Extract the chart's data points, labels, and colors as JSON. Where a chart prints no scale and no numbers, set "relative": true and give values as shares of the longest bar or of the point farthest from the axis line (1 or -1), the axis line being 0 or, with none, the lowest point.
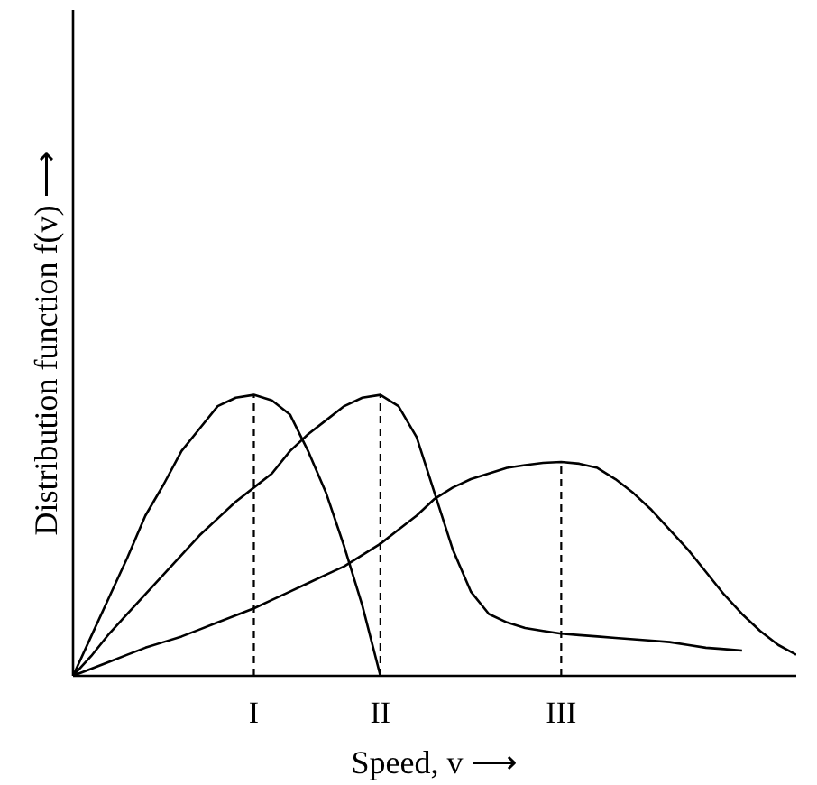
{
  "chart_data": {
    "type": "line",
    "relative": true,
    "xlabel": "Speed, v ⟶",
    "ylabel": "Distribution function f(v) ⟶",
    "categories": [
      null,
      null,
      null,
      null,
      null,
      null,
      null,
      null,
      null,
      null,
      "I",
      null,
      null,
      null,
      null,
      null,
      null,
      "II",
      null,
      null,
      null,
      null,
      null,
      null,
      null,
      null,
      null,
      "III",
      null,
      null,
      null,
      null,
      null,
      null,
      null,
      null,
      null,
      null,
      null,
      null,
      null
    ],
    "grid": false,
    "marker": "none",
    "series": [
      {
        "color": "#000000",
        "values": [
          0,
          0.14,
          0.28,
          0.42,
          0.57,
          0.68,
          0.8,
          0.88,
          0.96,
          0.99,
          1,
          0.98,
          0.93,
          0.8,
          0.65,
          0.46,
          0.25,
          0,
          null,
          null,
          null,
          null,
          null,
          null,
          null,
          null,
          null,
          null,
          null,
          null,
          null,
          null,
          null,
          null,
          null,
          null,
          null,
          null,
          null,
          null,
          null
        ]
      },
      {
        "color": "#000000",
        "values": [
          0,
          0.07,
          0.15,
          0.22,
          0.29,
          0.36,
          0.43,
          0.5,
          0.56,
          0.62,
          0.67,
          0.72,
          0.8,
          0.86,
          0.91,
          0.96,
          0.99,
          1,
          0.96,
          0.85,
          0.65,
          0.45,
          0.3,
          0.22,
          0.19,
          0.17,
          0.16,
          0.15,
          0.145,
          0.14,
          0.135,
          0.13,
          0.125,
          0.12,
          0.11,
          0.1,
          0.095,
          0.09,
          null,
          null,
          null
        ]
      },
      {
        "color": "#000000",
        "values": [
          0,
          0.025,
          0.05,
          0.075,
          0.1,
          0.12,
          0.14,
          0.165,
          0.19,
          0.215,
          0.24,
          0.27,
          0.3,
          0.33,
          0.36,
          0.39,
          0.43,
          0.47,
          0.52,
          0.57,
          0.63,
          0.67,
          0.7,
          0.72,
          0.74,
          0.75,
          0.758,
          0.761,
          0.755,
          0.74,
          0.7,
          0.65,
          0.59,
          0.52,
          0.45,
          0.37,
          0.29,
          0.22,
          0.16,
          0.11,
          0.075
        ]
      }
    ],
    "ref_lines": [
      {
        "axis": "x",
        "value": "I",
        "color": "#000000",
        "line_style": "dashed"
      },
      {
        "axis": "x",
        "value": "II",
        "color": "#000000",
        "line_style": "dashed"
      },
      {
        "axis": "x",
        "value": "III",
        "color": "#000000",
        "line_style": "dashed"
      }
    ]
  }
}
